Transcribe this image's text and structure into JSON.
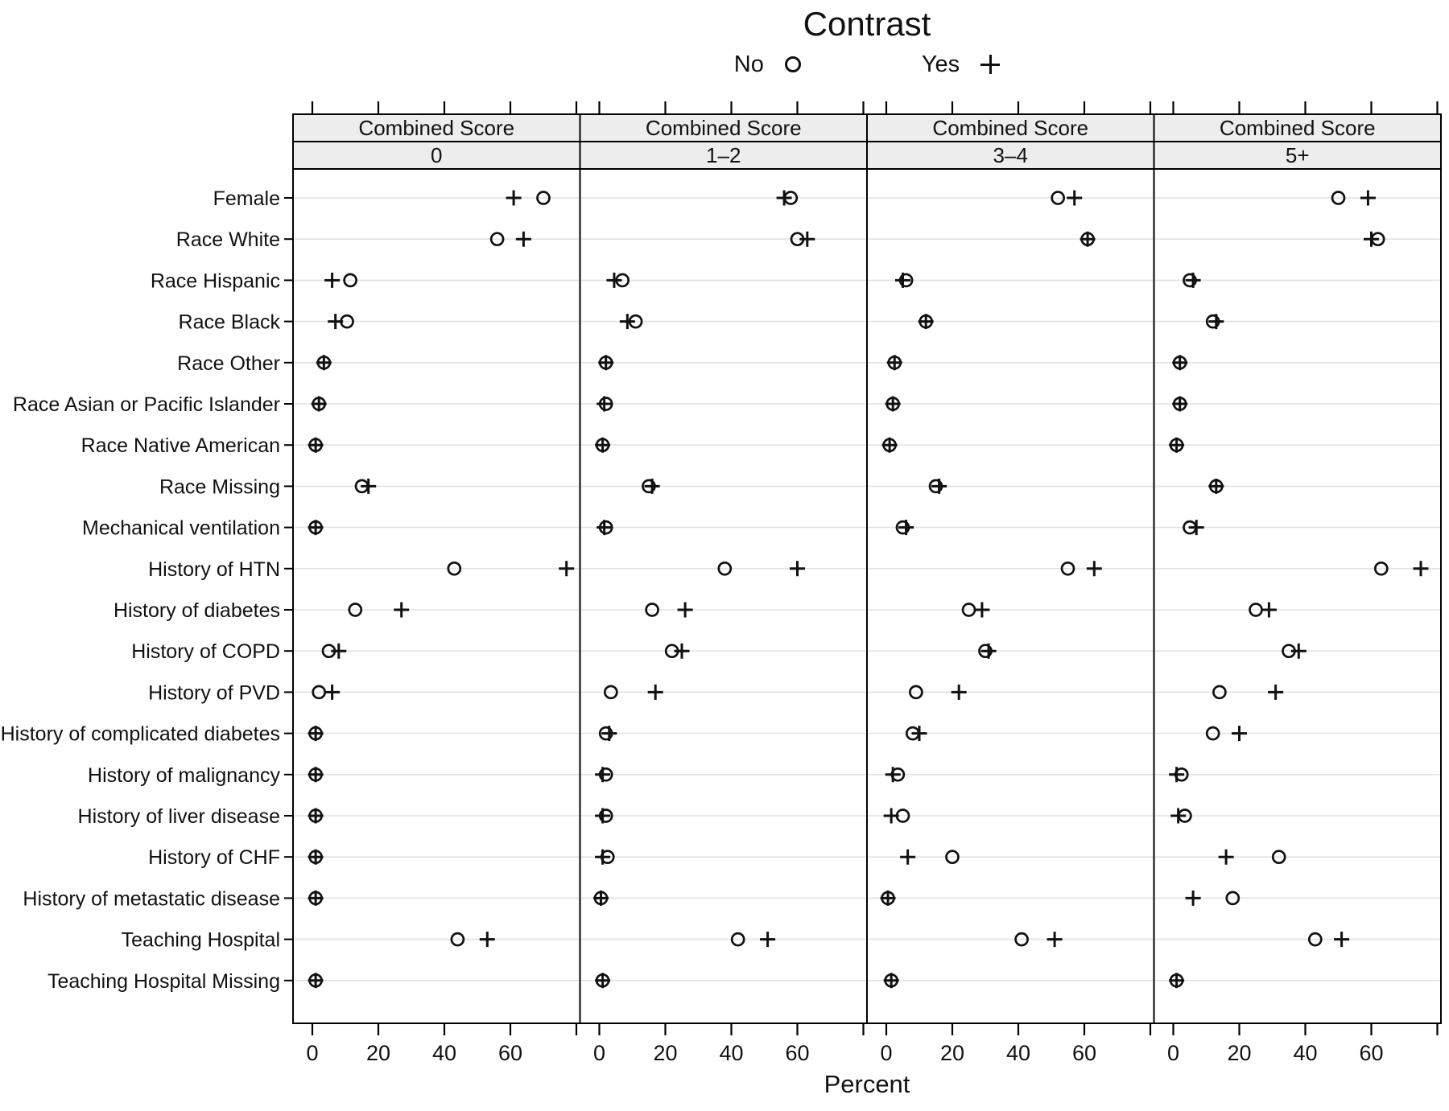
{
  "title": "Contrast",
  "legend": {
    "no_label": "No",
    "yes_label": "Yes"
  },
  "xlabel": "Percent",
  "colors": {
    "marker": "#111111",
    "strip_bg": "#ededed",
    "grid": "#e2e2e2",
    "border": "#000000",
    "text": "#111111"
  },
  "chart_data": {
    "type": "scatter",
    "title": "Contrast",
    "xlabel": "Percent",
    "strip_title": "Combined Score",
    "legend": {
      "position": "top",
      "entries": [
        {
          "label": "No",
          "symbol": "circle"
        },
        {
          "label": "Yes",
          "symbol": "plus"
        }
      ]
    },
    "grid": "horizontal",
    "x_ticks": [
      0,
      20,
      40,
      60
    ],
    "x_minor_unlabeled_tick": 80,
    "xlim": [
      -6,
      80
    ],
    "categories": [
      "Female",
      "Race White",
      "Race Hispanic",
      "Race Black",
      "Race Other",
      "Race Asian or Pacific Islander",
      "Race Native American",
      "Race Missing",
      "Mechanical ventilation",
      "History of HTN",
      "History of diabetes",
      "History of COPD",
      "History of PVD",
      "History of complicated diabetes",
      "History of malignancy",
      "History of liver disease",
      "History of CHF",
      "History of metastatic disease",
      "Teaching Hospital",
      "Teaching Hospital Missing"
    ],
    "panels": [
      {
        "level": "0",
        "no": [
          70,
          56,
          11.5,
          10.5,
          3.5,
          2,
          1,
          15,
          1,
          43,
          13,
          5,
          2,
          1,
          1,
          1,
          1,
          1,
          44,
          1
        ],
        "yes": [
          61,
          64,
          6,
          7,
          3.5,
          2,
          1,
          17,
          1,
          77,
          27,
          8,
          6,
          1,
          1,
          1,
          1,
          1,
          53,
          1
        ]
      },
      {
        "level": "1–2",
        "no": [
          58,
          60,
          7,
          11,
          2,
          2,
          1,
          15,
          2,
          38,
          16,
          22,
          3.5,
          2,
          2,
          2,
          2.5,
          0.5,
          42,
          1
        ],
        "yes": [
          56,
          63,
          4.5,
          8.5,
          2,
          1.5,
          1,
          16,
          1.5,
          60,
          26,
          25,
          17,
          3,
          1,
          1,
          1,
          0.5,
          51,
          1
        ]
      },
      {
        "level": "3–4",
        "no": [
          52,
          61,
          6,
          12,
          2.5,
          2,
          1,
          15,
          5,
          55,
          25,
          30,
          9,
          8,
          3.5,
          5,
          20,
          0.5,
          41,
          1.5
        ],
        "yes": [
          57,
          61,
          5,
          12,
          2.5,
          2,
          1,
          16,
          6,
          63,
          29,
          31,
          22,
          10,
          2,
          1.5,
          6.5,
          0.5,
          51,
          1.5
        ]
      },
      {
        "level": "5+",
        "no": [
          50,
          62,
          5,
          12,
          2,
          2,
          1,
          13,
          5,
          63,
          25,
          35,
          14,
          12,
          2.5,
          3.5,
          32,
          18,
          43,
          1
        ],
        "yes": [
          59,
          60,
          6,
          13,
          2,
          2,
          1,
          13,
          7,
          75,
          29,
          38,
          31,
          20,
          1,
          1.5,
          16,
          6,
          51,
          1
        ]
      }
    ]
  }
}
